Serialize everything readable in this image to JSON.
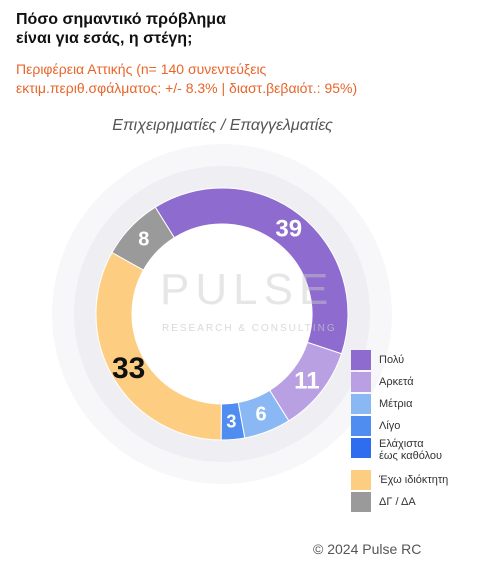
{
  "header": {
    "title_line1": "Πόσο σημαντικό πρόβλημα",
    "title_line2": "είναι για εσάς, η στέγη;",
    "subtitle_line1": "Περιφέρεια Αττικής   (n= 140 συνεντεύξεις",
    "subtitle_line2": "εκτιμ.περιθ.σφάλματος: +/- 8.3% | διαστ.βεβαιότ.: 95%)"
  },
  "watermark": {
    "main": "PULSE",
    "sub": "RESEARCH & CONSULTING"
  },
  "footer": {
    "copyright": "© 2024 Pulse RC"
  },
  "chart_data": {
    "type": "pie",
    "variant": "donut",
    "group_label": "Επιχειρηματίες / Επαγγελματίες",
    "categories": [
      "Πολύ",
      "Αρκετά",
      "Μέτρια",
      "Λίγο",
      "Ελάχιστα έως καθόλου",
      "Έχω ιδιόκτητη",
      "ΔΓ / ΔΑ"
    ],
    "values": [
      39,
      11,
      6,
      3,
      0,
      33,
      8
    ],
    "labels": [
      "39",
      "11",
      "6",
      "3",
      "",
      "33",
      "8"
    ],
    "colors": [
      "#8e6ccf",
      "#b9a0e2",
      "#8ab8f4",
      "#4f8ef0",
      "#2e6df0",
      "#fdce82",
      "#9a9a9a"
    ],
    "label_colors": [
      "#ffffff",
      "#ffffff",
      "#ffffff",
      "#ffffff",
      "#ffffff",
      "#111111",
      "#ffffff"
    ],
    "legend": [
      {
        "text_lines": [
          "Πολύ"
        ],
        "color": "#8e6ccf"
      },
      {
        "text_lines": [
          "Αρκετά"
        ],
        "color": "#b9a0e2"
      },
      {
        "text_lines": [
          "Μέτρια"
        ],
        "color": "#8ab8f4"
      },
      {
        "text_lines": [
          "Λίγο"
        ],
        "color": "#4f8ef0"
      },
      {
        "text_lines": [
          "Ελάχιστα",
          "έως καθόλου"
        ],
        "color": "#2e6df0"
      },
      {
        "text_lines": [
          "Έχω ιδιόκτητη"
        ],
        "color": "#fdce82"
      },
      {
        "text_lines": [
          "ΔΓ / ΔΑ"
        ],
        "color": "#9a9a9a"
      }
    ],
    "legend_position": "right"
  }
}
